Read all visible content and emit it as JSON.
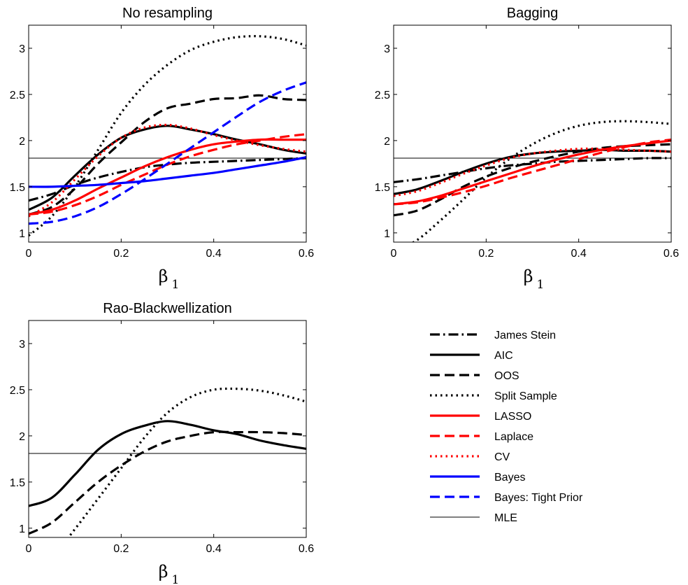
{
  "legend": [
    {
      "name": "James Stein",
      "color": "#000000",
      "style": "dashdot",
      "weight": "thick"
    },
    {
      "name": "AIC",
      "color": "#000000",
      "style": "solid",
      "weight": "thick"
    },
    {
      "name": "OOS",
      "color": "#000000",
      "style": "dashed",
      "weight": "thick"
    },
    {
      "name": "Split Sample",
      "color": "#000000",
      "style": "dotted",
      "weight": "thick"
    },
    {
      "name": "LASSO",
      "color": "#ff0000",
      "style": "solid",
      "weight": "thick"
    },
    {
      "name": "Laplace",
      "color": "#ff0000",
      "style": "dashed",
      "weight": "thick"
    },
    {
      "name": "CV",
      "color": "#ff0000",
      "style": "dotted",
      "weight": "thick"
    },
    {
      "name": "Bayes",
      "color": "#0000ff",
      "style": "solid",
      "weight": "thick"
    },
    {
      "name": "Bayes: Tight Prior",
      "color": "#0000ff",
      "style": "dashed",
      "weight": "thick"
    },
    {
      "name": "MLE",
      "color": "#000000",
      "style": "solid",
      "weight": "thin"
    }
  ],
  "chart_data": [
    {
      "type": "line",
      "title": "No resampling",
      "xlabel": "β",
      "xlabel_sub": "1",
      "ylabel": "",
      "xlim": [
        0,
        0.6
      ],
      "ylim": [
        0.9,
        3.25
      ],
      "xticks": [
        "0",
        "0.2",
        "0.4",
        "0.6"
      ],
      "yticks": [
        "1",
        "1.5",
        "2",
        "2.5",
        "3"
      ],
      "grid": false,
      "x": [
        0,
        0.05,
        0.1,
        0.15,
        0.2,
        0.25,
        0.3,
        0.35,
        0.4,
        0.45,
        0.5,
        0.55,
        0.6
      ],
      "series": [
        {
          "name": "James Stein",
          "values": [
            1.35,
            1.42,
            1.52,
            1.6,
            1.66,
            1.71,
            1.74,
            1.76,
            1.77,
            1.78,
            1.79,
            1.8,
            1.81
          ]
        },
        {
          "name": "AIC",
          "values": [
            1.25,
            1.38,
            1.62,
            1.85,
            2.03,
            2.12,
            2.16,
            2.12,
            2.07,
            2.01,
            1.96,
            1.9,
            1.86
          ]
        },
        {
          "name": "OOS",
          "values": [
            1.2,
            1.28,
            1.48,
            1.75,
            1.98,
            2.2,
            2.35,
            2.4,
            2.45,
            2.46,
            2.49,
            2.45,
            2.44
          ]
        },
        {
          "name": "Split Sample",
          "values": [
            0.97,
            1.18,
            1.5,
            1.9,
            2.3,
            2.6,
            2.82,
            2.98,
            3.07,
            3.12,
            3.13,
            3.1,
            3.03
          ]
        },
        {
          "name": "LASSO",
          "values": [
            1.2,
            1.25,
            1.35,
            1.48,
            1.6,
            1.72,
            1.82,
            1.9,
            1.96,
            1.99,
            2.01,
            2.01,
            2.01
          ]
        },
        {
          "name": "Laplace",
          "values": [
            1.2,
            1.23,
            1.3,
            1.4,
            1.52,
            1.63,
            1.74,
            1.83,
            1.9,
            1.96,
            2.0,
            2.04,
            2.07
          ]
        },
        {
          "name": "CV",
          "values": [
            1.18,
            1.33,
            1.58,
            1.83,
            2.03,
            2.14,
            2.17,
            2.13,
            2.06,
            2.0,
            1.95,
            1.91,
            1.88
          ]
        },
        {
          "name": "Bayes",
          "values": [
            1.5,
            1.5,
            1.51,
            1.52,
            1.54,
            1.56,
            1.59,
            1.62,
            1.65,
            1.69,
            1.73,
            1.77,
            1.82
          ]
        },
        {
          "name": "Bayes: Tight Prior",
          "values": [
            1.1,
            1.12,
            1.18,
            1.28,
            1.42,
            1.58,
            1.75,
            1.92,
            2.09,
            2.26,
            2.42,
            2.54,
            2.63
          ]
        },
        {
          "name": "MLE",
          "values": [
            1.81,
            1.81,
            1.81,
            1.81,
            1.81,
            1.81,
            1.81,
            1.81,
            1.81,
            1.81,
            1.81,
            1.81,
            1.81
          ]
        }
      ]
    },
    {
      "type": "line",
      "title": "Bagging",
      "xlabel": "β",
      "xlabel_sub": "1",
      "ylabel": "",
      "xlim": [
        0,
        0.6
      ],
      "ylim": [
        0.9,
        3.25
      ],
      "xticks": [
        "0",
        "0.2",
        "0.4",
        "0.6"
      ],
      "yticks": [
        "1",
        "1.5",
        "2",
        "2.5",
        "3"
      ],
      "grid": false,
      "x": [
        0,
        0.05,
        0.1,
        0.15,
        0.2,
        0.25,
        0.3,
        0.35,
        0.4,
        0.45,
        0.5,
        0.55,
        0.6
      ],
      "series": [
        {
          "name": "James Stein",
          "values": [
            1.55,
            1.58,
            1.62,
            1.66,
            1.7,
            1.73,
            1.75,
            1.77,
            1.78,
            1.79,
            1.8,
            1.81,
            1.81
          ]
        },
        {
          "name": "AIC",
          "values": [
            1.42,
            1.47,
            1.56,
            1.66,
            1.75,
            1.82,
            1.86,
            1.88,
            1.89,
            1.9,
            1.89,
            1.89,
            1.88
          ]
        },
        {
          "name": "OOS",
          "values": [
            1.19,
            1.24,
            1.36,
            1.5,
            1.61,
            1.7,
            1.77,
            1.83,
            1.88,
            1.92,
            1.94,
            1.95,
            1.96
          ]
        },
        {
          "name": "Split Sample",
          "values": [
            0.8,
            0.92,
            1.13,
            1.36,
            1.6,
            1.8,
            1.96,
            2.08,
            2.16,
            2.2,
            2.21,
            2.2,
            2.18
          ]
        },
        {
          "name": "LASSO",
          "values": [
            1.31,
            1.34,
            1.4,
            1.48,
            1.56,
            1.64,
            1.72,
            1.79,
            1.85,
            1.9,
            1.94,
            1.97,
            2.0
          ]
        },
        {
          "name": "Laplace",
          "values": [
            1.31,
            1.33,
            1.38,
            1.44,
            1.51,
            1.59,
            1.66,
            1.73,
            1.8,
            1.87,
            1.93,
            1.98,
            2.01
          ]
        },
        {
          "name": "CV",
          "values": [
            1.4,
            1.45,
            1.54,
            1.64,
            1.73,
            1.81,
            1.86,
            1.89,
            1.91,
            1.91,
            1.9,
            1.89,
            1.88
          ]
        },
        {
          "name": "MLE",
          "values": [
            1.81,
            1.81,
            1.81,
            1.81,
            1.81,
            1.81,
            1.81,
            1.81,
            1.81,
            1.81,
            1.81,
            1.81,
            1.81
          ]
        }
      ]
    },
    {
      "type": "line",
      "title": "Rao-Blackwellization",
      "xlabel": "β",
      "xlabel_sub": "1",
      "ylabel": "",
      "xlim": [
        0,
        0.6
      ],
      "ylim": [
        0.9,
        3.25
      ],
      "xticks": [
        "0",
        "0.2",
        "0.4",
        "0.6"
      ],
      "yticks": [
        "1",
        "1.5",
        "2",
        "2.5",
        "3"
      ],
      "grid": false,
      "x": [
        0,
        0.05,
        0.1,
        0.15,
        0.2,
        0.25,
        0.3,
        0.35,
        0.4,
        0.45,
        0.5,
        0.55,
        0.6
      ],
      "series": [
        {
          "name": "AIC",
          "values": [
            1.24,
            1.33,
            1.58,
            1.85,
            2.02,
            2.11,
            2.16,
            2.12,
            2.06,
            2.02,
            1.95,
            1.9,
            1.86
          ]
        },
        {
          "name": "OOS",
          "values": [
            0.94,
            1.06,
            1.28,
            1.5,
            1.68,
            1.83,
            1.94,
            2.0,
            2.04,
            2.04,
            2.04,
            2.03,
            2.01
          ]
        },
        {
          "name": "Split Sample",
          "values": [
            0.5,
            0.68,
            0.99,
            1.32,
            1.65,
            1.98,
            2.25,
            2.42,
            2.5,
            2.51,
            2.49,
            2.44,
            2.37
          ]
        },
        {
          "name": "MLE",
          "values": [
            1.81,
            1.81,
            1.81,
            1.81,
            1.81,
            1.81,
            1.81,
            1.81,
            1.81,
            1.81,
            1.81,
            1.81,
            1.81
          ]
        }
      ]
    }
  ]
}
